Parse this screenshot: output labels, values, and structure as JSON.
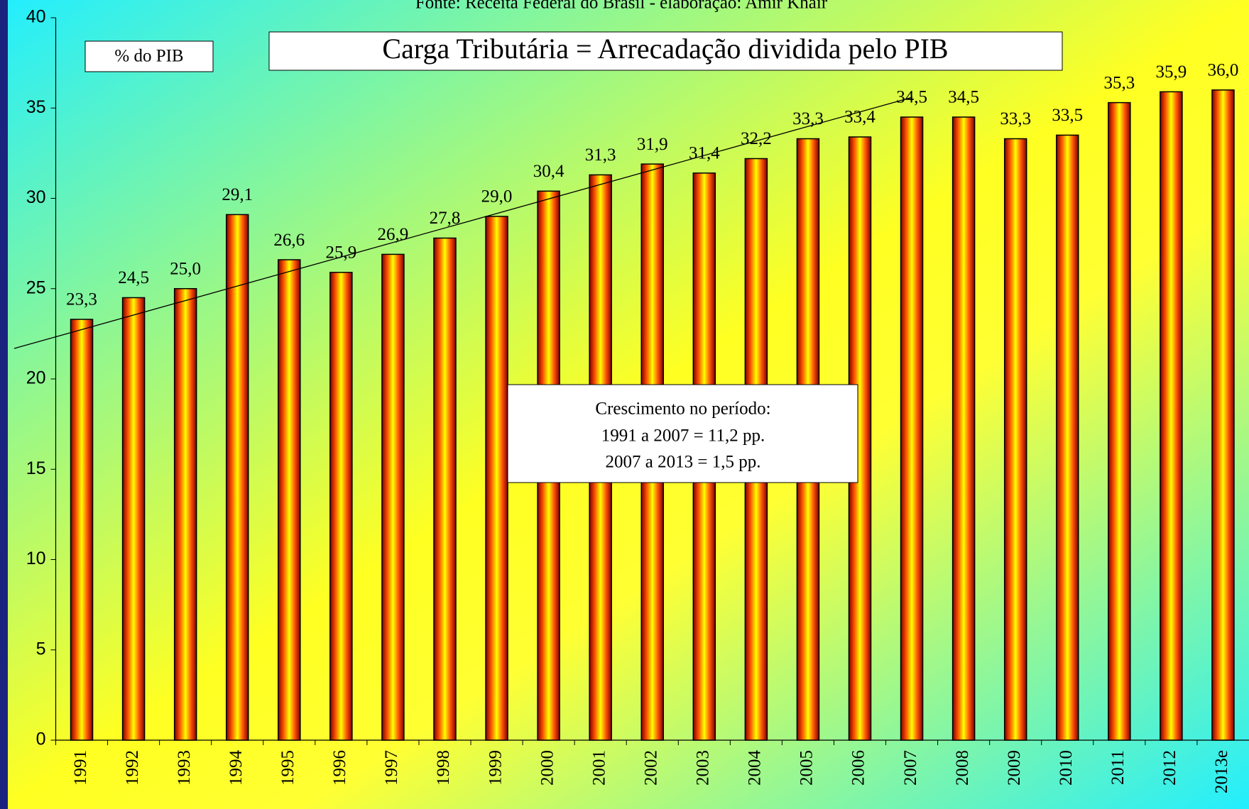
{
  "chart_data": {
    "type": "bar",
    "source": "Fonte: Receita Federal do Brasil - elaboração: Amir Khair",
    "title": "Carga Tributária = Arrecadação dividida pelo PIB",
    "y_label": "% do PIB",
    "annotation": [
      "Crescimento no período:",
      "1991 a 2007 = 11,2 pp.",
      "2007 a 2013 = 1,5 pp."
    ],
    "categories": [
      "1991",
      "1992",
      "1993",
      "1994",
      "1995",
      "1996",
      "1997",
      "1998",
      "1999",
      "2000",
      "2001",
      "2002",
      "2003",
      "2004",
      "2005",
      "2006",
      "2007",
      "2008",
      "2009",
      "2010",
      "2011",
      "2012",
      "2013e"
    ],
    "values": [
      23.3,
      24.5,
      25.0,
      29.1,
      26.6,
      25.9,
      26.9,
      27.8,
      29.0,
      30.4,
      31.3,
      31.9,
      31.4,
      32.2,
      33.3,
      33.4,
      34.5,
      34.5,
      33.3,
      33.5,
      35.3,
      35.9,
      36.0
    ],
    "value_labels": [
      "23,3",
      "24,5",
      "25,0",
      "29,1",
      "26,6",
      "25,9",
      "26,9",
      "27,8",
      "29,0",
      "30,4",
      "31,3",
      "31,9",
      "31,4",
      "32,2",
      "33,3",
      "33,4",
      "34,5",
      "34,5",
      "33,3",
      "33,5",
      "35,3",
      "35,9",
      "36,0"
    ],
    "color": "#ffff00",
    "ylim": [
      0,
      40
    ],
    "yticks": [
      0,
      5,
      10,
      15,
      20,
      25,
      30,
      35,
      40
    ],
    "grid": false
  }
}
